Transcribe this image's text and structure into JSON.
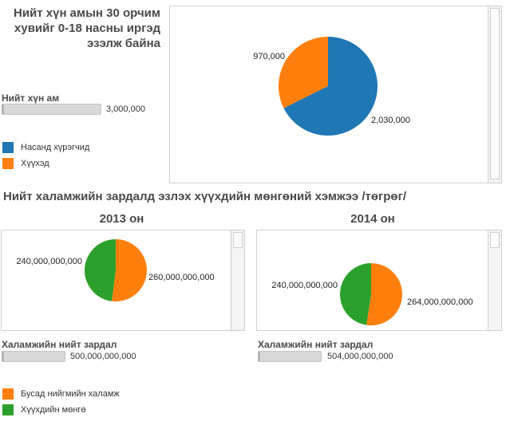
{
  "top": {
    "title_lines": [
      "Нийт хүн амын 30 орчим",
      "хувийг 0-18 насны иргэд",
      "эзэлж байна"
    ],
    "control_label": "Нийт хүн ам",
    "control_value": "3,000,000",
    "legend": [
      {
        "label": "Насанд хүрэгчид",
        "color": "#1f77b4"
      },
      {
        "label": "Хүүхэд",
        "color": "#ff7f0e"
      }
    ]
  },
  "section_title": "Нийт халамжийн зардалд эзлэх хүүхдийн мөнгөний хэмжээ /төгрөг/",
  "year_2013": {
    "title": "2013 он",
    "control_label": "Халамжийн нийт зардал",
    "control_value": "500,000,000,000"
  },
  "year_2014": {
    "title": "2014 он",
    "control_label": "Халамжийн нийт зардал",
    "control_value": "504,000,000,000"
  },
  "bottom_legend": [
    {
      "label": "Бусад нийгмийн халамж",
      "color": "#ff7f0e"
    },
    {
      "label": "Хүүхдийн мөнгө",
      "color": "#2ca02c"
    }
  ],
  "chart_data": [
    {
      "type": "pie",
      "title": "",
      "slices": [
        {
          "label": "2,030,000",
          "value": 2030000,
          "color": "#1f77b4"
        },
        {
          "label": "970,000",
          "value": 970000,
          "color": "#ff7f0e"
        }
      ]
    },
    {
      "type": "pie",
      "title": "2013 он",
      "slices": [
        {
          "label": "260,000,000,000",
          "value": 260000000000,
          "color": "#ff7f0e"
        },
        {
          "label": "240,000,000,000",
          "value": 240000000000,
          "color": "#2ca02c"
        }
      ]
    },
    {
      "type": "pie",
      "title": "2014 он",
      "slices": [
        {
          "label": "264,000,000,000",
          "value": 264000000000,
          "color": "#ff7f0e"
        },
        {
          "label": "240,000,000,000",
          "value": 240000000000,
          "color": "#2ca02c"
        }
      ]
    }
  ]
}
